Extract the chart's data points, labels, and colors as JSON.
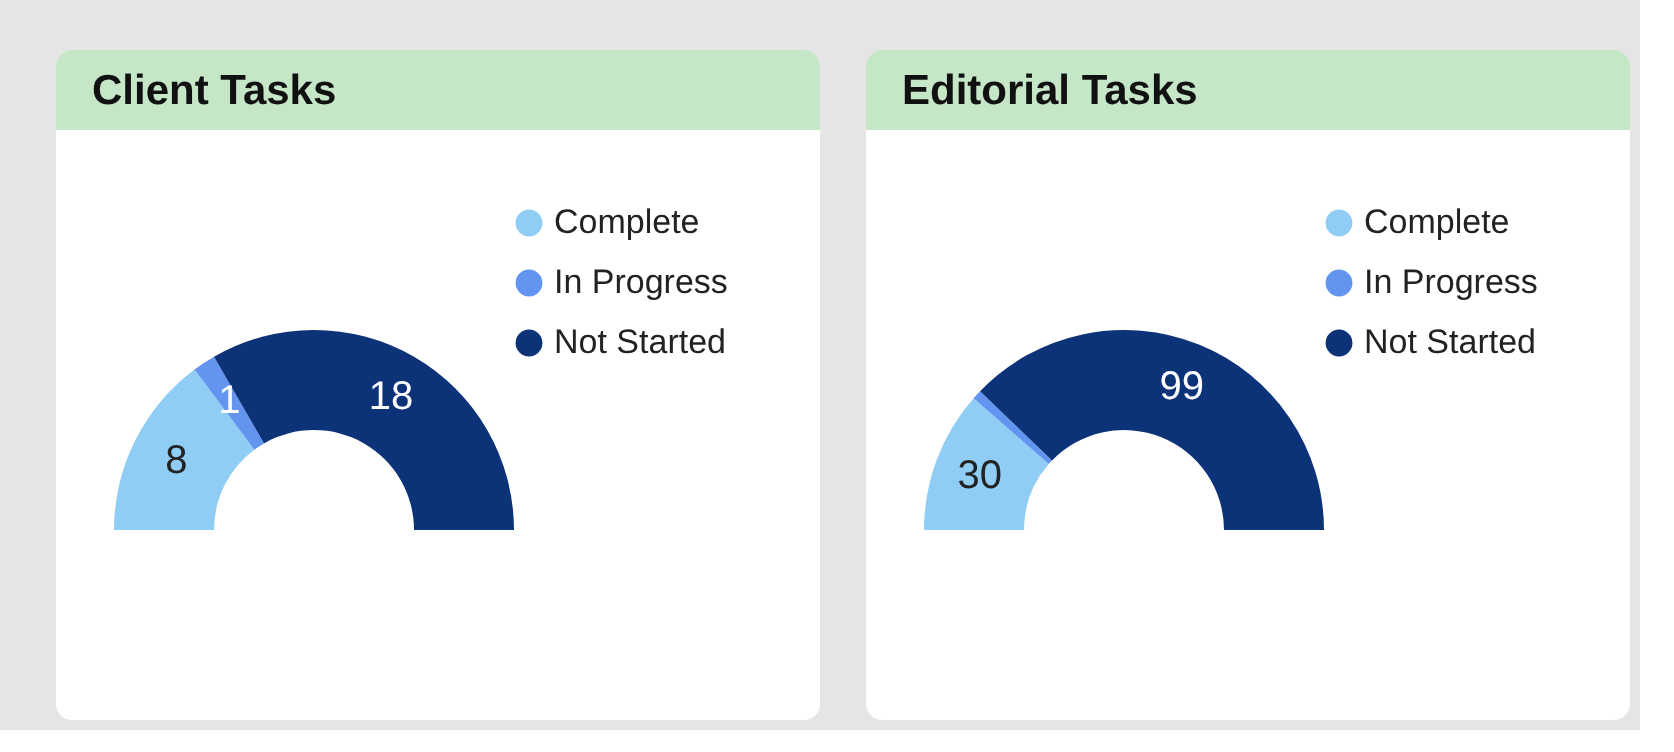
{
  "chart_data": [
    {
      "type": "donut",
      "title": "Client Tasks",
      "categories": [
        "Complete",
        "In Progress",
        "Not Started"
      ],
      "values": [
        8,
        1,
        18
      ],
      "colors": [
        "#90cdf4",
        "#6395f0",
        "#0c3278"
      ],
      "data_labels": true,
      "legend": "top right"
    },
    {
      "type": "donut",
      "title": "Editorial Tasks",
      "categories": [
        "Complete",
        "In Progress",
        "Not Started"
      ],
      "values": [
        30,
        2,
        99
      ],
      "value_labels": [
        "30",
        null,
        "99"
      ],
      "colors": [
        "#90cdf4",
        "#6395f0",
        "#0c3278"
      ],
      "legend": "top right"
    }
  ]
}
